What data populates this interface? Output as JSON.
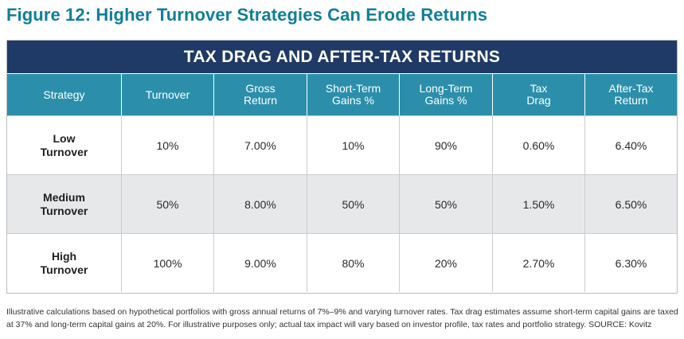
{
  "figure": {
    "title": "Figure 12: Higher Turnover Strategies Can Erode Returns"
  },
  "table": {
    "banner": "TAX DRAG AND AFTER-TAX RETURNS",
    "columns": [
      "Strategy",
      "Turnover",
      "Gross\nReturn",
      "Short-Term\nGains %",
      "Long-Term\nGains %",
      "Tax\nDrag",
      "After-Tax\nReturn"
    ],
    "rows": [
      {
        "strategy": "Low\nTurnover",
        "turnover": "10%",
        "gross_return": "7.00%",
        "short_term": "10%",
        "long_term": "90%",
        "tax_drag": "0.60%",
        "after_tax": "6.40%"
      },
      {
        "strategy": "Medium\nTurnover",
        "turnover": "50%",
        "gross_return": "8.00%",
        "short_term": "50%",
        "long_term": "50%",
        "tax_drag": "1.50%",
        "after_tax": "6.50%"
      },
      {
        "strategy": "High\nTurnover",
        "turnover": "100%",
        "gross_return": "9.00%",
        "short_term": "80%",
        "long_term": "20%",
        "tax_drag": "2.70%",
        "after_tax": "6.30%"
      }
    ]
  },
  "footnote": "Illustrative calculations based on hypothetical portfolios with gross annual returns of 7%–9% and varying turnover rates. Tax drag estimates assume short-term capital gains are taxed at 37% and long-term capital gains at 20%. For illustrative purposes only; actual tax impact will vary based on investor profile, tax rates and portfolio strategy. SOURCE: Kovitz",
  "colors": {
    "title": "#0f7f9a",
    "banner": "#1f3a66",
    "header": "#2b8fab",
    "alt_row": "#e7e8ea"
  }
}
